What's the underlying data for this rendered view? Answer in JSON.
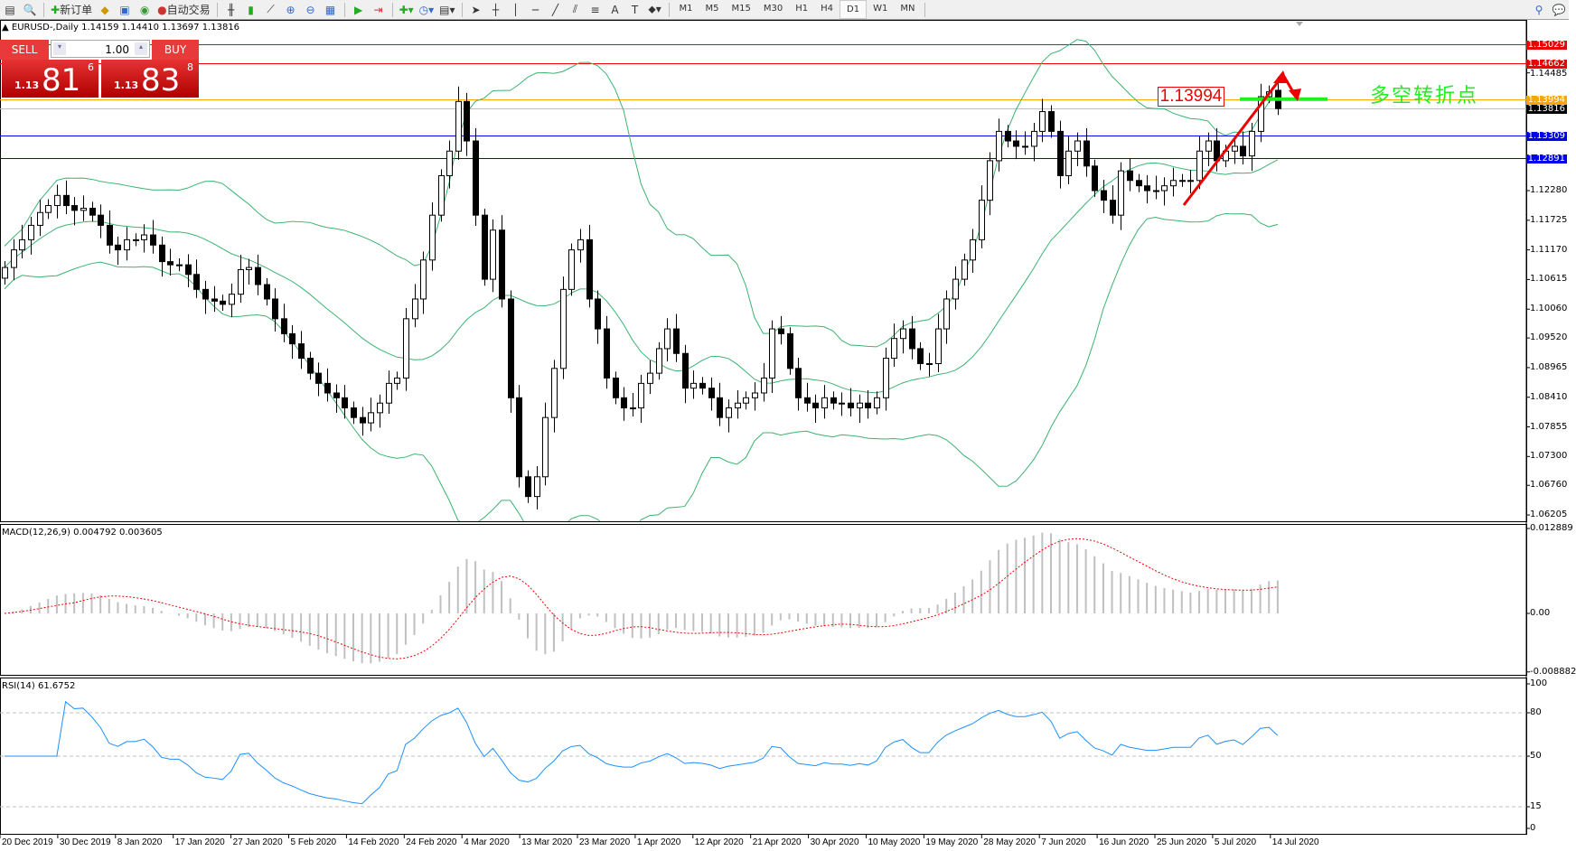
{
  "toolbar": {
    "new_order": "新订单",
    "auto_trading": "自动交易",
    "timeframes": [
      "M1",
      "M5",
      "M15",
      "M30",
      "H1",
      "H4",
      "D1",
      "W1",
      "MN"
    ],
    "active_timeframe": "D1",
    "icons": [
      "new-chart-icon",
      "zoom-chart-icon",
      "new-order-icon",
      "metaeditor-icon",
      "terminal-icon",
      "signal-icon",
      "auto-trading-icon",
      "bar-chart-icon",
      "candlestick-icon",
      "line-chart-icon",
      "zoom-in-icon",
      "zoom-out-icon",
      "tile-windows-icon",
      "autoscroll-icon",
      "chart-shift-icon",
      "indicators-icon",
      "periods-icon",
      "templates-icon",
      "cursor-icon",
      "crosshair-icon",
      "vertical-line-icon",
      "horizontal-line-icon",
      "trendline-icon",
      "equidistant-channel-icon",
      "fibonacci-icon",
      "text-icon",
      "text-label-icon",
      "arrows-icon"
    ]
  },
  "chart": {
    "symbol_line": "EURUSD-,Daily  1.14159 1.14410 1.13697 1.13816",
    "current_ohlc": {
      "open": 1.14159,
      "high": 1.1441,
      "low": 1.13697,
      "close": 1.13816
    }
  },
  "trade_panel": {
    "sell_label": "SELL",
    "buy_label": "BUY",
    "lot": "1.00",
    "sell_prefix": "1.13",
    "sell_big": "81",
    "sell_sup": "6",
    "buy_prefix": "1.13",
    "buy_big": "83",
    "buy_sup": "8"
  },
  "annotation": {
    "label": "1.13994",
    "text": "多空转折点",
    "colors": {
      "label": "#ee0000",
      "text": "#22ee22",
      "arrow": "#ee0000",
      "line": "#22ee22"
    }
  },
  "levels": [
    {
      "value": "1.15029",
      "color": "#ee0000"
    },
    {
      "value": "1.14662",
      "color": "#ee0000"
    },
    {
      "value": "1.13994",
      "color": "#ffa500"
    },
    {
      "value": "1.13816",
      "color": "#000000",
      "line": "#c0c0c0"
    },
    {
      "value": "1.13309",
      "color": "#0000ee"
    },
    {
      "value": "1.12891",
      "color": "#0000ee"
    }
  ],
  "macd": {
    "title": "MACD(12,26,9) 0.004792 0.003605",
    "ticks": [
      "0.012889",
      "0.00",
      "-0.008882"
    ],
    "range": [
      -0.008882,
      0.012889
    ]
  },
  "rsi": {
    "title": "RSI(14) 61.6752",
    "ticks": [
      "100",
      "80",
      "50",
      "15",
      "0"
    ],
    "levels": [
      80,
      50,
      15
    ]
  },
  "chart_data": {
    "type": "candlestick",
    "symbol": "EURUSD-",
    "timeframe": "Daily",
    "price_ticks": [
      "1.14485",
      "1.12280",
      "1.11725",
      "1.11170",
      "1.10615",
      "1.10060",
      "1.09520",
      "1.08965",
      "1.08410",
      "1.07855",
      "1.07300",
      "1.06760",
      "1.06205"
    ],
    "date_labels": [
      "20 Dec 2019",
      "30 Dec 2019",
      "8 Jan 2020",
      "17 Jan 2020",
      "27 Jan 2020",
      "5 Feb 2020",
      "14 Feb 2020",
      "24 Feb 2020",
      "4 Mar 2020",
      "13 Mar 2020",
      "23 Mar 2020",
      "1 Apr 2020",
      "12 Apr 2020",
      "21 Apr 2020",
      "30 Apr 2020",
      "10 May 2020",
      "19 May 2020",
      "28 May 2020",
      "7 Jun 2020",
      "16 Jun 2020",
      "25 Jun 2020",
      "5 Jul 2020",
      "14 Jul 2020"
    ],
    "close": [
      1.1084,
      1.1117,
      1.1136,
      1.1163,
      1.1187,
      1.12,
      1.1219,
      1.12,
      1.1191,
      1.1195,
      1.1182,
      1.1163,
      1.1126,
      1.1117,
      1.1136,
      1.1136,
      1.1145,
      1.1126,
      1.1095,
      1.1089,
      1.1089,
      1.1071,
      1.1043,
      1.1025,
      1.1021,
      1.1015,
      1.1034,
      1.108,
      1.1084,
      1.1052,
      1.1025,
      1.0988,
      1.096,
      1.0941,
      1.0914,
      1.0886,
      1.0867,
      1.0849,
      1.084,
      1.0821,
      1.0803,
      1.0793,
      1.0812,
      1.083,
      1.0867,
      1.0877,
      1.0988,
      1.1025,
      1.1098,
      1.1182,
      1.1256,
      1.1302,
      1.1395,
      1.1321,
      1.1182,
      1.1062,
      1.1154,
      1.1025,
      1.084,
      1.0692,
      1.0655,
      1.0692,
      1.0803,
      1.0895,
      1.1043,
      1.1117,
      1.1136,
      1.1025,
      1.0969,
      1.0877,
      1.084,
      1.0821,
      1.0821,
      1.0867,
      1.0886,
      1.0932,
      1.0969,
      1.0923,
      1.0858,
      1.0867,
      1.0858,
      1.084,
      1.0803,
      1.0821,
      1.083,
      1.084,
      1.0849,
      1.0877,
      1.0969,
      1.096,
      1.0895,
      1.084,
      1.083,
      1.0821,
      1.084,
      1.083,
      1.083,
      1.0821,
      1.083,
      1.0821,
      1.084,
      1.0914,
      1.0951,
      1.0969,
      1.0932,
      1.0904,
      1.0904,
      1.0969,
      1.1025,
      1.1062,
      1.1098,
      1.1136,
      1.121,
      1.1284,
      1.1339,
      1.1321,
      1.1311,
      1.1311,
      1.1339,
      1.1376,
      1.1339,
      1.1256,
      1.1302,
      1.1321,
      1.1274,
      1.1228,
      1.121,
      1.1182,
      1.1265,
      1.1247,
      1.1237,
      1.1228,
      1.1228,
      1.1237,
      1.1247,
      1.1247,
      1.1247,
      1.1302,
      1.1321,
      1.1284,
      1.1302,
      1.1311,
      1.1293,
      1.1339,
      1.1404,
      1.1413,
      1.13816
    ],
    "indicators": [
      "Bollinger Bands(20,2)",
      "MACD(12,26,9)",
      "RSI(14)"
    ],
    "colors": {
      "bands": "#3cb371",
      "macd_hist": "#c0c0c0",
      "macd_signal": "#ee0000",
      "rsi": "#1e90ff",
      "bull": "#ffffff",
      "bear": "#000000"
    }
  }
}
